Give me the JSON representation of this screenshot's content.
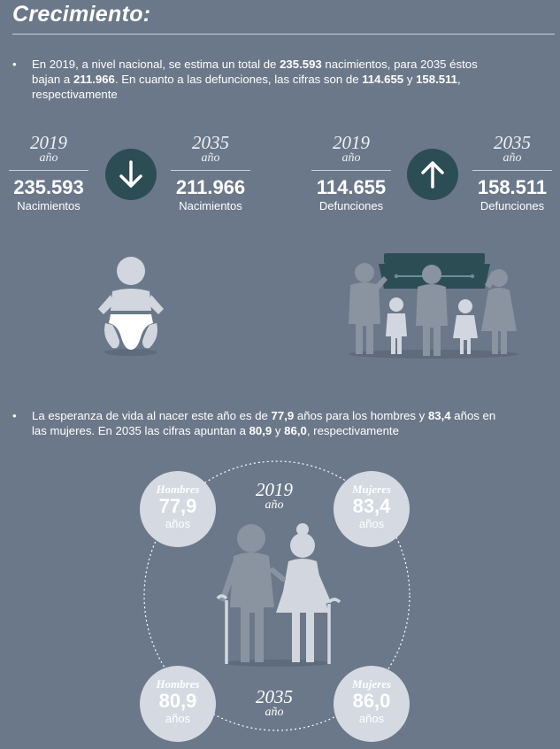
{
  "title": "Crecimiento:",
  "bullet1": {
    "marker": "•",
    "parts": [
      {
        "t": "En 2019, a nivel nacional, se estima un total de "
      },
      {
        "t": "235.593",
        "b": true
      },
      {
        "t": " nacimientos, para 2035 éstos bajan a "
      },
      {
        "t": "211.966",
        "b": true
      },
      {
        "t": ". En cuanto a las defunciones, las cifras son de "
      },
      {
        "t": "114.655",
        "b": true
      },
      {
        "t": " y "
      },
      {
        "t": "158.511",
        "b": true
      },
      {
        "t": ", respectivamente"
      }
    ]
  },
  "stats": {
    "births_2019": {
      "year": "2019",
      "ano": "año",
      "value": "235.593",
      "label": "Nacimientos"
    },
    "births_2035": {
      "year": "2035",
      "ano": "año",
      "value": "211.966",
      "label": "Nacimientos"
    },
    "deaths_2019": {
      "year": "2019",
      "ano": "año",
      "value": "114.655",
      "label": "Defunciones"
    },
    "deaths_2035": {
      "year": "2035",
      "ano": "año",
      "value": "158.511",
      "label": "Defunciones"
    }
  },
  "icons": {
    "births_trend": "arrow-down-icon",
    "deaths_trend": "arrow-up-icon",
    "baby": "baby-icon",
    "funeral": "funeral-family-icon",
    "elderly": "elderly-couple-icon"
  },
  "bullet2": {
    "marker": "•",
    "parts": [
      {
        "t": "La esperanza de vida al nacer este año es de "
      },
      {
        "t": "77,9",
        "b": true
      },
      {
        "t": " años para los hombres y "
      },
      {
        "t": "83,4",
        "b": true
      },
      {
        "t": " años en las mujeres. En 2035 las cifras apuntan a "
      },
      {
        "t": "80,9",
        "b": true
      },
      {
        "t": " y "
      },
      {
        "t": "86,0",
        "b": true
      },
      {
        "t": ", respectivamente"
      }
    ]
  },
  "life": {
    "year_2019": {
      "year": "2019",
      "ano": "año"
    },
    "year_2035": {
      "year": "2035",
      "ano": "año"
    },
    "men_2019": {
      "group": "Hombres",
      "value": "77,9",
      "unit": "años"
    },
    "women_2019": {
      "group": "Mujeres",
      "value": "83,4",
      "unit": "años"
    },
    "men_2035": {
      "group": "Hombres",
      "value": "80,9",
      "unit": "años"
    },
    "women_2035": {
      "group": "Mujeres",
      "value": "86,0",
      "unit": "años"
    }
  },
  "colors": {
    "background": "#6b7889",
    "arrow_circle": "#2d4d55",
    "figure_dark": "#8a93a0",
    "figure_light": "#d2d7df",
    "value_circle": "#d4d9e2"
  }
}
